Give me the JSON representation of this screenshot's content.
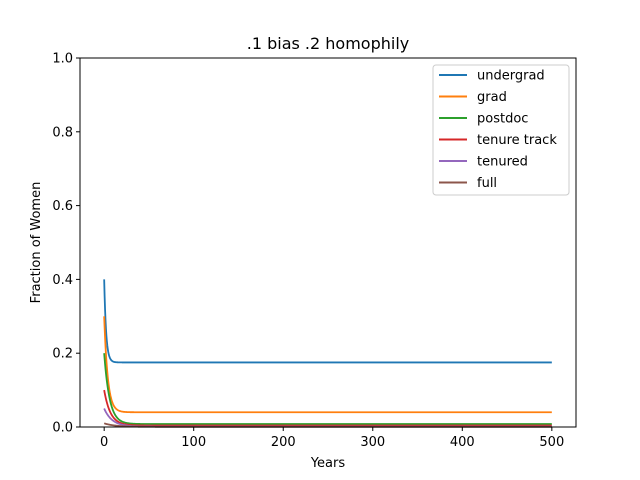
{
  "chart_data": {
    "type": "line",
    "title": ".1 bias .2 homophily",
    "xlabel": "Years",
    "ylabel": "Fraction of Women",
    "xlim": [
      -27,
      527
    ],
    "ylim": [
      0.0,
      1.0
    ],
    "xticks": [
      0,
      100,
      200,
      300,
      400,
      500
    ],
    "yticks": [
      0.0,
      0.2,
      0.4,
      0.6,
      0.8,
      1.0
    ],
    "ytick_labels": [
      "0.0",
      "0.2",
      "0.4",
      "0.6",
      "0.8",
      "1.0"
    ],
    "grid": false,
    "legend_position": "top-right",
    "series": [
      {
        "name": "undergrad",
        "color": "#1f77b4",
        "start": 0.4,
        "plateau": 0.175,
        "tau": 2.2
      },
      {
        "name": "grad",
        "color": "#ff7f0e",
        "start": 0.3,
        "plateau": 0.04,
        "tau": 4.0
      },
      {
        "name": "postdoc",
        "color": "#2ca02c",
        "start": 0.2,
        "plateau": 0.008,
        "tau": 6.0
      },
      {
        "name": "tenure track",
        "color": "#d62728",
        "start": 0.1,
        "plateau": 0.004,
        "tau": 7.0
      },
      {
        "name": "tenured",
        "color": "#9467bd",
        "start": 0.05,
        "plateau": 0.001,
        "tau": 9.0
      },
      {
        "name": "full",
        "color": "#8c564b",
        "start": 0.01,
        "plateau": 0.0005,
        "tau": 12.0
      }
    ],
    "x_range": [
      0,
      500
    ]
  }
}
